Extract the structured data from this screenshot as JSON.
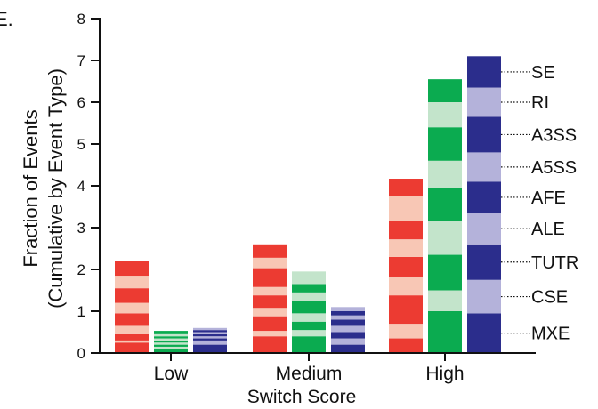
{
  "panel_label": "E.",
  "chart_data": {
    "type": "bar",
    "title": "",
    "ylabel_lines": [
      "Fraction of Events",
      "(Cumulative by Event Type)"
    ],
    "xlabel": "Switch Score",
    "ylim": [
      0,
      8
    ],
    "yticks": [
      "0",
      "1",
      "2",
      "3",
      "4",
      "5",
      "6",
      "7",
      "8"
    ],
    "categories": [
      "Low",
      "Medium",
      "High"
    ],
    "segment_names": [
      "MXE",
      "CSE",
      "TUTR",
      "ALE",
      "AFE",
      "A5SS",
      "A3SS",
      "RI",
      "SE"
    ],
    "series": [
      {
        "color_dark": "#ec3b32",
        "color_light": "#f8c7b5",
        "stacks": [
          [
            0.25,
            0.05,
            0.15,
            0.2,
            0.3,
            0.25,
            0.35,
            0.3,
            0.35
          ],
          [
            0.4,
            0.13,
            0.35,
            0.2,
            0.3,
            0.2,
            0.45,
            0.25,
            0.32
          ],
          [
            0.35,
            0.35,
            0.68,
            0.45,
            0.47,
            0.42,
            0.43,
            0.6,
            0.42
          ]
        ]
      },
      {
        "color_dark": "#0bab50",
        "color_light": "#c3e4cb",
        "stacks": [
          [
            0.1,
            0.05,
            0.05,
            0.05,
            0.05,
            0.05,
            0.05,
            0.05,
            0.08
          ],
          [
            0.4,
            0.15,
            0.2,
            0.2,
            0.3,
            0.2,
            0.2,
            0.3,
            0.0
          ],
          [
            1.0,
            0.5,
            0.85,
            0.8,
            0.8,
            0.65,
            0.8,
            0.6,
            0.55
          ]
        ]
      },
      {
        "color_dark": "#2b2d8c",
        "color_light": "#b4b2da",
        "stacks": [
          [
            0.2,
            0.1,
            0.05,
            0.05,
            0.05,
            0.05,
            0.05,
            0.05,
            0.0
          ],
          [
            0.2,
            0.15,
            0.15,
            0.15,
            0.15,
            0.1,
            0.1,
            0.1,
            0.0
          ],
          [
            0.95,
            0.8,
            0.85,
            0.75,
            0.75,
            0.7,
            0.85,
            0.7,
            0.75
          ]
        ]
      }
    ]
  }
}
